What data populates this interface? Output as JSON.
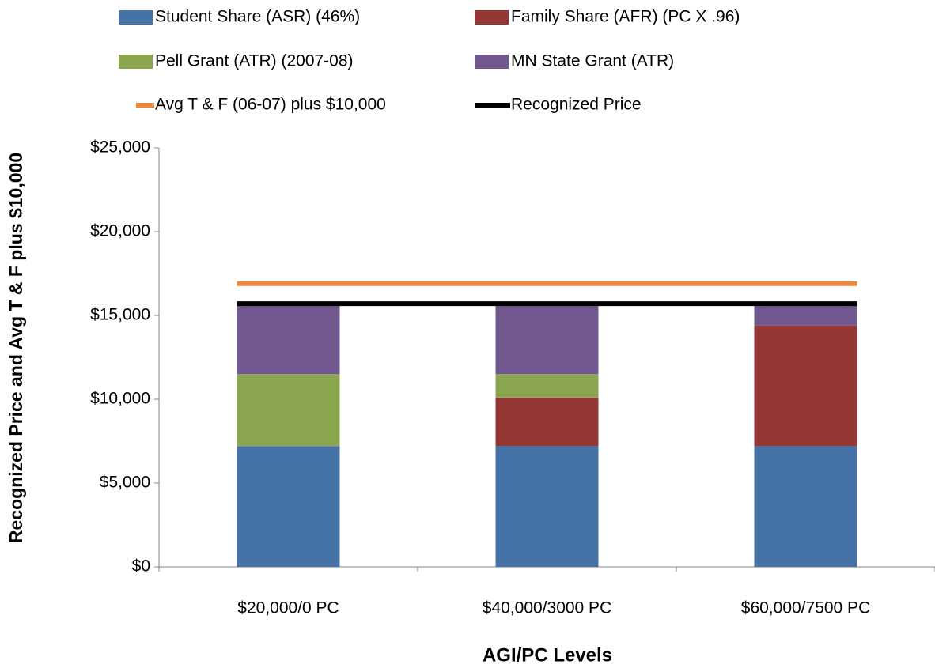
{
  "chart_data": {
    "type": "bar",
    "stacked": true,
    "x_label": "AGI/PC Levels",
    "y_label": "Recognized Price and  Avg T & F plus $10,000",
    "categories": [
      "$20,000/0 PC",
      "$40,000/3000 PC",
      "$60,000/7500 PC"
    ],
    "series": [
      {
        "name": "Student Share (ASR) (46%)",
        "color": "#4572a7",
        "values": [
          7200,
          7200,
          7200
        ]
      },
      {
        "name": "Family Share (AFR) (PC X .96)",
        "color": "#953735",
        "values": [
          0,
          2900,
          7200
        ]
      },
      {
        "name": "Pell Grant (ATR) (2007-08)",
        "color": "#89a54e",
        "values": [
          4300,
          1400,
          0
        ]
      },
      {
        "name": "MN State Grant (ATR)",
        "color": "#71588f",
        "values": [
          4200,
          4200,
          1300
        ]
      },
      {
        "name": "Avg T & F (06-07) plus $10,000",
        "type": "line",
        "color": "#e8893f",
        "values": [
          16900,
          16900,
          16900
        ]
      },
      {
        "name": "Recognized Price",
        "type": "line",
        "color": "#000000",
        "values": [
          15700,
          15700,
          15700
        ]
      }
    ],
    "ylim": [
      0,
      25000
    ],
    "yticks": [
      {
        "value": 0,
        "label": "$0"
      },
      {
        "value": 5000,
        "label": "$5,000"
      },
      {
        "value": 10000,
        "label": "$10,000"
      },
      {
        "value": 15000,
        "label": "$15,000"
      },
      {
        "value": 20000,
        "label": "$20,000"
      },
      {
        "value": 25000,
        "label": "$25,000"
      }
    ],
    "legend": "top"
  }
}
